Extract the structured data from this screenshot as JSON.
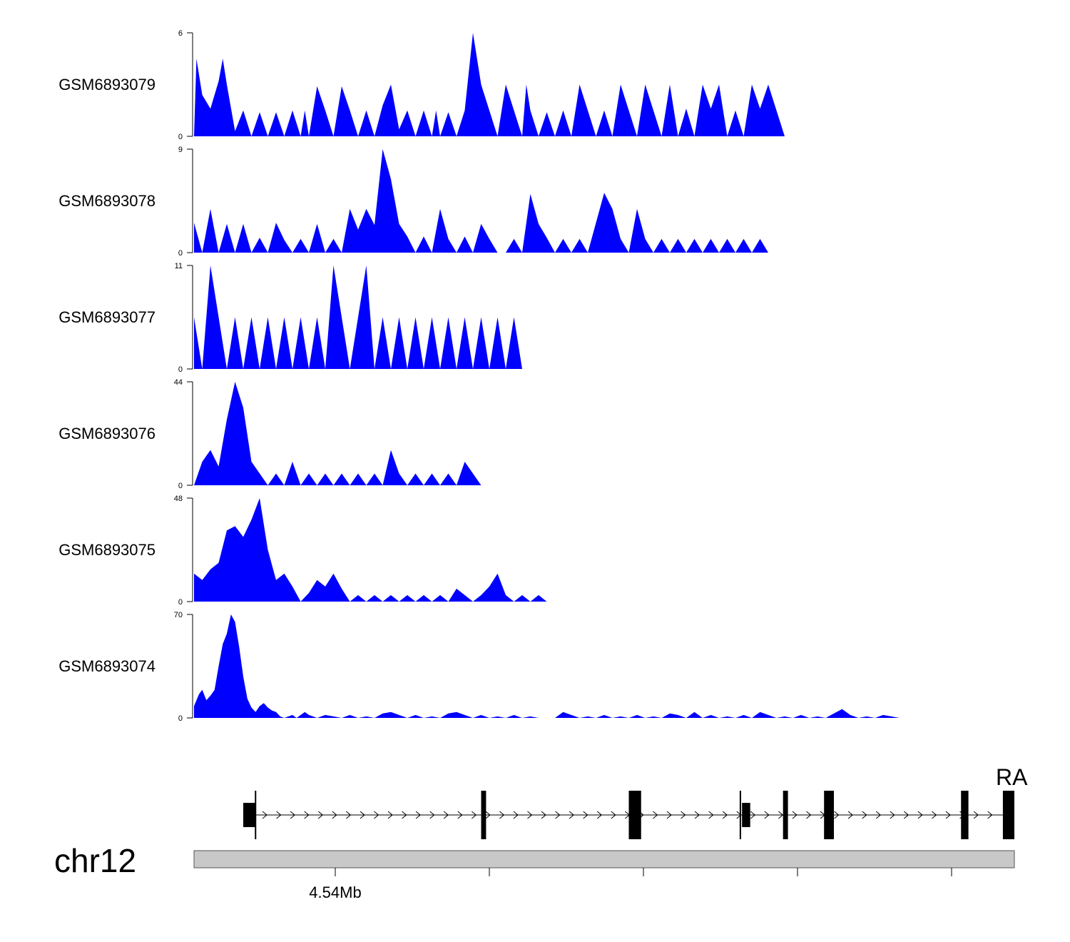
{
  "chart_data": {
    "type": "area",
    "x_unit": "Mb",
    "color": "#0000ff",
    "chromosome": "chr12",
    "axis": {
      "tick_labels": [
        {
          "label": "4.54Mb"
        }
      ]
    },
    "gene_label": "RA",
    "tracks": [
      {
        "name": "GSM6893079",
        "ymax": 6,
        "x": [
          0.0,
          0.3,
          1.0,
          2.0,
          3.0,
          3.5,
          4.0,
          5.0,
          6.0,
          7.0,
          8.0,
          9.0,
          10.0,
          11.0,
          12.0,
          13.0,
          13.5,
          14.0,
          15.0,
          16.0,
          17.0,
          18.0,
          19.0,
          20.0,
          21.0,
          22.0,
          23.0,
          24.0,
          25.0,
          26.0,
          27.0,
          28.0,
          29.0,
          29.5,
          30.0,
          31.0,
          32.0,
          33.0,
          34.0,
          35.0,
          36.0,
          37.0,
          38.0,
          39.0,
          40.0,
          40.5,
          41.0,
          42.0,
          43.0,
          44.0,
          45.0,
          46.0,
          47.0,
          48.0,
          49.0,
          50.0,
          51.0,
          52.0,
          53.0,
          54.0,
          55.0,
          56.0,
          57.0,
          58.0,
          59.0,
          60.0,
          61.0,
          62.0,
          63.0,
          64.0,
          65.0,
          66.0,
          67.0,
          68.0,
          69.0,
          70.0,
          71.0,
          72.0,
          73.0,
          74.0,
          75.0,
          76.0,
          76.5,
          77.0,
          78.0,
          79.0,
          80.0,
          81.0,
          82.0,
          83.0,
          84.0,
          85.0,
          86.0,
          87.0,
          88.0,
          89.0,
          90.0,
          91.0,
          92.0,
          93.0,
          94.0,
          95.0,
          96.0,
          97.0,
          98.0,
          99.0,
          100.0
        ],
        "y": [
          0,
          4.5,
          2.4,
          1.6,
          3.2,
          4.5,
          3.0,
          0.3,
          1.5,
          0,
          1.4,
          0,
          1.4,
          0,
          1.5,
          0,
          1.5,
          0,
          2.9,
          1.5,
          0,
          2.9,
          1.5,
          0,
          1.5,
          0,
          1.8,
          3.0,
          0.4,
          1.5,
          0,
          1.5,
          0,
          1.5,
          0,
          1.4,
          0,
          1.5,
          6.0,
          3.0,
          1.5,
          0,
          3.0,
          1.5,
          0,
          3.0,
          1.5,
          0,
          1.4,
          0,
          1.5,
          0,
          3.0,
          1.5,
          0,
          1.5,
          0,
          3.0,
          1.5,
          0,
          3.0,
          1.5,
          0,
          3.0,
          0,
          1.6,
          0,
          3.0,
          1.6,
          3.0,
          0,
          1.5,
          0,
          3.0,
          1.6,
          3.0,
          1.5,
          0,
          0,
          0,
          0,
          0,
          0,
          0,
          0,
          0,
          0,
          0,
          0,
          0,
          0,
          0,
          0,
          0,
          0,
          0,
          0,
          0,
          0,
          0,
          0,
          0,
          0,
          0,
          0,
          0,
          0
        ]
      },
      {
        "name": "GSM6893078",
        "ymax": 9,
        "x": [
          0,
          1,
          2,
          3,
          4,
          5,
          6,
          7,
          8,
          9,
          10,
          11,
          12,
          13,
          14,
          15,
          16,
          17,
          18,
          19,
          20,
          21,
          22,
          23,
          24,
          25,
          26,
          27,
          28,
          29,
          30,
          31,
          32,
          33,
          34,
          35,
          36,
          37,
          38,
          39,
          40,
          41,
          42,
          43,
          44,
          45,
          46,
          47,
          48,
          49,
          50,
          51,
          52,
          53,
          54,
          55,
          56,
          57,
          58,
          59,
          60,
          61,
          62,
          63,
          64,
          65,
          66,
          67,
          68,
          69,
          70,
          71,
          72,
          73,
          74,
          75,
          76,
          77,
          78,
          79,
          80,
          81,
          82,
          83,
          84,
          85,
          86,
          87,
          88,
          89,
          90,
          91,
          92,
          93,
          94,
          95,
          96,
          97,
          98,
          99,
          100
        ],
        "y": [
          2.6,
          0,
          3.8,
          0,
          2.5,
          0,
          2.5,
          0,
          1.3,
          0,
          2.6,
          1.1,
          0,
          1.2,
          0,
          2.5,
          0,
          1.2,
          0,
          3.8,
          2.0,
          3.8,
          2.4,
          9.0,
          6.4,
          2.5,
          1.4,
          0,
          1.4,
          0,
          3.8,
          1.2,
          0,
          1.4,
          0,
          2.5,
          1.2,
          0,
          0,
          1.2,
          0,
          5.1,
          2.5,
          1.3,
          0,
          1.2,
          0,
          1.2,
          0,
          2.6,
          5.2,
          3.8,
          1.2,
          0,
          3.8,
          1.2,
          0,
          1.2,
          0,
          1.2,
          0,
          1.2,
          0,
          1.2,
          0,
          1.2,
          0,
          1.2,
          0,
          1.2,
          0,
          0,
          0,
          0,
          0,
          0,
          0,
          0,
          0,
          0,
          0,
          0,
          0,
          0,
          0,
          0,
          0,
          0,
          0,
          0,
          0,
          0,
          0,
          0,
          0,
          0,
          0,
          0,
          0,
          0,
          0
        ]
      },
      {
        "name": "GSM6893077",
        "ymax": 11,
        "x": [
          0,
          1,
          2,
          3,
          4,
          5,
          6,
          7,
          8,
          9,
          10,
          11,
          12,
          13,
          14,
          15,
          16,
          17,
          18,
          19,
          20,
          21,
          22,
          23,
          24,
          25,
          26,
          27,
          28,
          29,
          30,
          31,
          32,
          33,
          34,
          35,
          36,
          37,
          38,
          39,
          40,
          41,
          42,
          43,
          44,
          45,
          46,
          47,
          48,
          49,
          50,
          51,
          52,
          53,
          54,
          55,
          56,
          57,
          58,
          59,
          60,
          61,
          62,
          63,
          64,
          65,
          66,
          67,
          68,
          69,
          70,
          71,
          72,
          73,
          74,
          75,
          76,
          77,
          78,
          79,
          80,
          81,
          82,
          83,
          84,
          85,
          86,
          87,
          88,
          89,
          90,
          91,
          92,
          93,
          94,
          95,
          96,
          97,
          98,
          99,
          100
        ],
        "y": [
          5.5,
          0,
          11.0,
          5.5,
          0,
          5.5,
          0,
          5.5,
          0,
          5.5,
          0,
          5.5,
          0,
          5.5,
          0,
          5.5,
          0,
          11.0,
          5.5,
          0,
          5.5,
          11.0,
          0,
          5.5,
          0,
          5.5,
          0,
          5.5,
          0,
          5.5,
          0,
          5.5,
          0,
          5.5,
          0,
          5.5,
          0,
          5.5,
          0,
          5.5,
          0,
          0,
          0,
          0,
          0,
          0,
          0,
          0,
          0,
          0,
          0,
          0,
          0,
          0,
          0,
          0,
          0,
          0,
          0,
          0,
          0,
          0,
          0,
          0,
          0,
          0,
          0,
          0,
          0,
          0,
          0,
          0,
          0,
          0,
          0,
          0,
          0,
          0,
          0,
          0,
          0,
          0,
          0,
          0,
          0,
          0,
          0,
          0,
          0,
          0,
          0,
          0,
          0,
          0,
          0,
          0,
          0,
          0,
          0,
          0,
          0
        ]
      },
      {
        "name": "GSM6893076",
        "ymax": 44,
        "x": [
          0,
          1,
          2,
          3,
          4,
          5,
          6,
          7,
          8,
          9,
          10,
          11,
          12,
          13,
          14,
          15,
          16,
          17,
          18,
          19,
          20,
          21,
          22,
          23,
          24,
          25,
          26,
          27,
          28,
          29,
          30,
          31,
          32,
          33,
          34,
          35,
          36,
          37,
          38,
          39,
          40,
          41,
          42,
          43,
          44,
          45,
          46,
          47,
          48,
          49,
          50,
          51,
          52,
          53,
          54,
          55,
          56,
          57,
          58,
          59,
          60,
          61,
          62,
          63,
          64,
          65,
          66,
          67,
          68,
          69,
          70,
          71,
          72,
          73,
          74,
          75,
          76,
          77,
          78,
          79,
          80,
          81,
          82,
          83,
          84,
          85,
          86,
          87,
          88,
          89,
          90,
          91,
          92,
          93,
          94,
          95,
          96,
          97,
          98,
          99,
          100
        ],
        "y": [
          0,
          10,
          15,
          8,
          28,
          44,
          33,
          10,
          5,
          0,
          5,
          0,
          10,
          0,
          5,
          0,
          5,
          0,
          5,
          0,
          5,
          0,
          5,
          0,
          15,
          5,
          0,
          5,
          0,
          5,
          0,
          5,
          0,
          10,
          5,
          0,
          0,
          0,
          0,
          0,
          0,
          0,
          0,
          0,
          0,
          0,
          0,
          0,
          0,
          0,
          0,
          0,
          0,
          0,
          0,
          0,
          0,
          0,
          0,
          0,
          0,
          0,
          0,
          0,
          0,
          0,
          0,
          0,
          0,
          0,
          0,
          0,
          0,
          0,
          0,
          0,
          0,
          0,
          0,
          0,
          0,
          0,
          0,
          0,
          0,
          0,
          0,
          0,
          0,
          0,
          0,
          0,
          0,
          0,
          0,
          0,
          0,
          0,
          0,
          0,
          0
        ]
      },
      {
        "name": "GSM6893075",
        "ymax": 48,
        "x": [
          0,
          1,
          2,
          3,
          4,
          5,
          6,
          7,
          8,
          9,
          10,
          11,
          12,
          13,
          14,
          15,
          16,
          17,
          18,
          19,
          20,
          21,
          22,
          23,
          24,
          25,
          26,
          27,
          28,
          29,
          30,
          31,
          32,
          33,
          34,
          35,
          36,
          37,
          38,
          39,
          40,
          41,
          42,
          43,
          44,
          45,
          46,
          47,
          48,
          49,
          50,
          51,
          52,
          53,
          54,
          55,
          56,
          57,
          58,
          59,
          60,
          61,
          62,
          63,
          64,
          65,
          66,
          67,
          68,
          69,
          70,
          71,
          72,
          73,
          74,
          75,
          76,
          77,
          78,
          79,
          80,
          81,
          82,
          83,
          84,
          85,
          86,
          87,
          88,
          89,
          90,
          91,
          92,
          93,
          94,
          95,
          96,
          97,
          98,
          99,
          100
        ],
        "y": [
          13,
          10,
          15,
          18,
          33,
          35,
          30,
          38,
          48,
          24,
          10,
          13,
          7,
          0,
          4,
          10,
          7,
          13,
          6,
          0,
          3,
          0,
          3,
          0,
          3,
          0,
          3,
          0,
          3,
          0,
          3,
          0,
          6,
          3,
          0,
          3,
          7,
          13,
          3,
          0,
          3,
          0,
          3,
          0,
          0,
          0,
          0,
          0,
          0,
          0,
          0,
          0,
          0,
          0,
          0,
          0,
          0,
          0,
          0,
          0,
          0,
          0,
          0,
          0,
          0,
          0,
          0,
          0,
          0,
          0,
          0,
          0,
          0,
          0,
          0,
          0,
          0,
          0,
          0,
          0,
          0,
          0,
          0,
          0,
          0,
          0,
          0,
          0,
          0,
          0,
          0,
          0,
          0,
          0,
          0,
          0,
          0,
          0,
          0,
          0,
          0
        ]
      },
      {
        "name": "GSM6893074",
        "ymax": 70,
        "x": [
          0,
          0.6,
          1.0,
          1.5,
          2.0,
          2.5,
          3.0,
          3.5,
          4.0,
          4.5,
          5.0,
          5.5,
          6.0,
          6.5,
          7.0,
          7.5,
          8.0,
          8.5,
          9.0,
          9.5,
          10.0,
          10.5,
          11.0,
          11.5,
          12.0,
          12.5,
          13.0,
          13.5,
          14.0,
          14.5,
          15.0,
          16.0,
          17.0,
          18.0,
          19.0,
          20.0,
          21.0,
          22.0,
          23.0,
          24.0,
          25.0,
          26.0,
          27.0,
          28.0,
          29.0,
          30.0,
          31.0,
          32.0,
          33.0,
          34.0,
          35.0,
          36.0,
          37.0,
          38.0,
          39.0,
          40.0,
          41.0,
          42.0,
          43.0,
          44.0,
          45.0,
          46.0,
          47.0,
          48.0,
          49.0,
          50.0,
          51.0,
          52.0,
          53.0,
          54.0,
          55.0,
          56.0,
          57.0,
          58.0,
          59.0,
          60.0,
          61.0,
          62.0,
          63.0,
          64.0,
          65.0,
          66.0,
          67.0,
          68.0,
          69.0,
          70.0,
          71.0,
          72.0,
          73.0,
          74.0,
          75.0,
          76.0,
          77.0,
          78.0,
          79.0,
          80.0,
          81.0,
          82.0,
          83.0,
          84.0,
          85.0,
          86.0
        ],
        "y": [
          8,
          16,
          19,
          12,
          15,
          19,
          35,
          50,
          57,
          70,
          65,
          48,
          28,
          13,
          7,
          4,
          8,
          10,
          7,
          5,
          4,
          1,
          0,
          1,
          2,
          0,
          2,
          4,
          2,
          1,
          0,
          2,
          1,
          0,
          2,
          0,
          1,
          0,
          3,
          4,
          2,
          0,
          2,
          0,
          1,
          0,
          3,
          4,
          2,
          0,
          2,
          0,
          1,
          0,
          2,
          0,
          1,
          0,
          0,
          0,
          4,
          2,
          0,
          1,
          0,
          2,
          0,
          1,
          0,
          2,
          0,
          1,
          0,
          3,
          2,
          0,
          4,
          0,
          2,
          0,
          1,
          0,
          2,
          0,
          4,
          2,
          0,
          1,
          0,
          2,
          0,
          1,
          0,
          3,
          6,
          2,
          0,
          1,
          0,
          2,
          1,
          0
        ]
      }
    ],
    "gene_model": {
      "strand": "+",
      "exons": [
        {
          "start": 6.0,
          "end": 7.5,
          "thick": false
        },
        {
          "start": 35.0,
          "end": 35.6,
          "thick": true
        },
        {
          "start": 53.0,
          "end": 54.5,
          "thick": true
        },
        {
          "start": 66.8,
          "end": 67.8,
          "thick": false
        },
        {
          "start": 71.8,
          "end": 72.4,
          "thick": true
        },
        {
          "start": 76.8,
          "end": 78.0,
          "thick": true
        },
        {
          "start": 93.5,
          "end": 94.4,
          "thick": true
        },
        {
          "start": 98.6,
          "end": 100.0,
          "thick": true
        }
      ]
    }
  }
}
